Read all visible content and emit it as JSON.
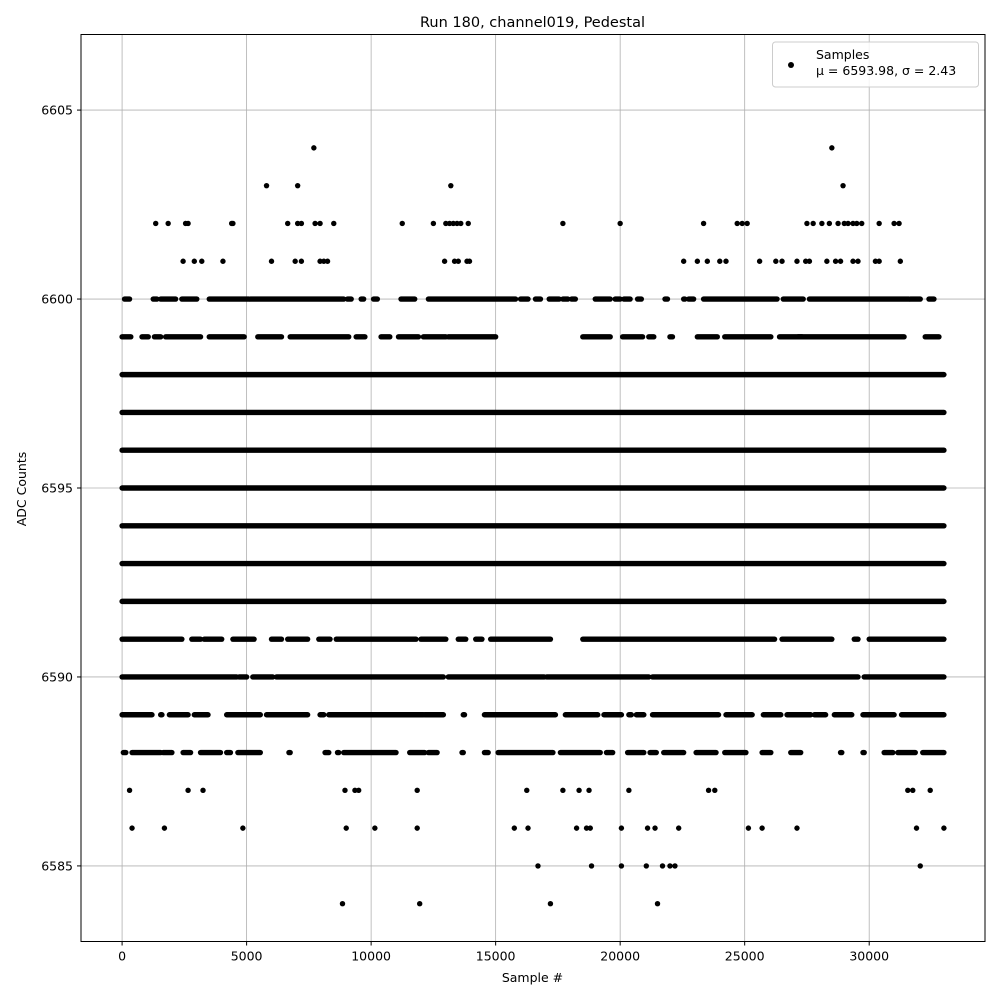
{
  "chart_data": {
    "type": "scatter",
    "title": "Run 180, channel019, Pedestal",
    "xlabel": "Sample #",
    "ylabel": "ADC Counts",
    "xlim": [
      -1650,
      34650
    ],
    "ylim": [
      6583,
      6607
    ],
    "xticks": [
      0,
      5000,
      10000,
      15000,
      20000,
      25000,
      30000
    ],
    "yticks": [
      6585,
      6590,
      6595,
      6600,
      6605
    ],
    "grid": true,
    "legend_position": "top-right",
    "marker_color": "#000000",
    "series": [
      {
        "name": "Samples",
        "stats_label": "μ = 6593.98, σ = 2.43",
        "n_samples": 33000,
        "dense_levels": [
          {
            "y": 6592,
            "from": 0,
            "to": 33000
          },
          {
            "y": 6593,
            "from": 0,
            "to": 33000
          },
          {
            "y": 6594,
            "from": 0,
            "to": 33000
          },
          {
            "y": 6595,
            "from": 0,
            "to": 33000
          },
          {
            "y": 6596,
            "from": 0,
            "to": 33000
          },
          {
            "y": 6597,
            "from": 0,
            "to": 33000
          },
          {
            "y": 6598,
            "from": 0,
            "to": 33000
          }
        ],
        "sparse_points": [
          [
            8850,
            6584
          ],
          [
            11950,
            6584
          ],
          [
            17200,
            6584
          ],
          [
            21500,
            6584
          ],
          [
            16700,
            6585
          ],
          [
            18850,
            6585
          ],
          [
            20050,
            6585
          ],
          [
            21050,
            6585
          ],
          [
            21700,
            6585
          ],
          [
            22000,
            6585
          ],
          [
            22200,
            6585
          ],
          [
            32050,
            6585
          ],
          [
            400,
            6586
          ],
          [
            1700,
            6586
          ],
          [
            4850,
            6586
          ],
          [
            9000,
            6586
          ],
          [
            10150,
            6586
          ],
          [
            11850,
            6586
          ],
          [
            15750,
            6586
          ],
          [
            16300,
            6586
          ],
          [
            18250,
            6586
          ],
          [
            18650,
            6586
          ],
          [
            18800,
            6586
          ],
          [
            20050,
            6586
          ],
          [
            21100,
            6586
          ],
          [
            21400,
            6586
          ],
          [
            22350,
            6586
          ],
          [
            25150,
            6586
          ],
          [
            25700,
            6586
          ],
          [
            27100,
            6586
          ],
          [
            31900,
            6586
          ],
          [
            33000,
            6586
          ],
          [
            300,
            6587
          ],
          [
            2650,
            6587
          ],
          [
            3250,
            6587
          ],
          [
            8950,
            6587
          ],
          [
            9350,
            6587
          ],
          [
            9500,
            6587
          ],
          [
            11850,
            6587
          ],
          [
            16250,
            6587
          ],
          [
            17700,
            6587
          ],
          [
            18350,
            6587
          ],
          [
            18750,
            6587
          ],
          [
            20350,
            6587
          ],
          [
            23550,
            6587
          ],
          [
            23800,
            6587
          ],
          [
            31550,
            6587
          ],
          [
            31750,
            6587
          ],
          [
            32450,
            6587
          ],
          [
            7700,
            6604
          ],
          [
            28500,
            6604
          ],
          [
            5800,
            6603
          ],
          [
            7050,
            6603
          ],
          [
            13200,
            6603
          ],
          [
            28950,
            6603
          ],
          [
            1350,
            6602
          ],
          [
            1850,
            6602
          ],
          [
            2550,
            6602
          ],
          [
            2650,
            6602
          ],
          [
            4400,
            6602
          ],
          [
            4450,
            6602
          ],
          [
            6650,
            6602
          ],
          [
            7050,
            6602
          ],
          [
            7200,
            6602
          ],
          [
            7750,
            6602
          ],
          [
            7950,
            6602
          ],
          [
            8500,
            6602
          ],
          [
            11250,
            6602
          ],
          [
            12500,
            6602
          ],
          [
            13000,
            6602
          ],
          [
            13150,
            6602
          ],
          [
            13300,
            6602
          ],
          [
            13450,
            6602
          ],
          [
            13600,
            6602
          ],
          [
            13900,
            6602
          ],
          [
            17700,
            6602
          ],
          [
            20000,
            6602
          ],
          [
            23350,
            6602
          ],
          [
            24700,
            6602
          ],
          [
            24900,
            6602
          ],
          [
            25100,
            6602
          ],
          [
            27500,
            6602
          ],
          [
            27750,
            6602
          ],
          [
            28100,
            6602
          ],
          [
            28400,
            6602
          ],
          [
            28750,
            6602
          ],
          [
            29000,
            6602
          ],
          [
            29150,
            6602
          ],
          [
            29350,
            6602
          ],
          [
            29500,
            6602
          ],
          [
            29700,
            6602
          ],
          [
            30400,
            6602
          ],
          [
            31000,
            6602
          ],
          [
            31200,
            6602
          ],
          [
            2450,
            6601
          ],
          [
            2900,
            6601
          ],
          [
            3200,
            6601
          ],
          [
            4050,
            6601
          ],
          [
            6000,
            6601
          ],
          [
            6950,
            6601
          ],
          [
            7200,
            6601
          ],
          [
            7950,
            6601
          ],
          [
            8100,
            6601
          ],
          [
            8250,
            6601
          ],
          [
            12950,
            6601
          ],
          [
            13350,
            6601
          ],
          [
            13500,
            6601
          ],
          [
            13850,
            6601
          ],
          [
            13950,
            6601
          ],
          [
            22550,
            6601
          ],
          [
            23100,
            6601
          ],
          [
            23500,
            6601
          ],
          [
            24000,
            6601
          ],
          [
            24250,
            6601
          ],
          [
            25600,
            6601
          ],
          [
            26250,
            6601
          ],
          [
            26500,
            6601
          ],
          [
            27100,
            6601
          ],
          [
            27450,
            6601
          ],
          [
            27600,
            6601
          ],
          [
            28300,
            6601
          ],
          [
            28650,
            6601
          ],
          [
            28850,
            6601
          ],
          [
            29350,
            6601
          ],
          [
            29550,
            6601
          ],
          [
            30250,
            6601
          ],
          [
            30400,
            6601
          ],
          [
            31250,
            6601
          ]
        ],
        "level_runs": [
          {
            "y": 6600,
            "runs": [
              [
                100,
                300
              ],
              [
                1250,
                1400
              ],
              [
                1550,
                2150
              ],
              [
                2400,
                3000
              ],
              [
                3500,
                5100
              ],
              [
                5150,
                8900
              ],
              [
                9050,
                9200
              ],
              [
                9600,
                9700
              ],
              [
                10100,
                10250
              ],
              [
                11200,
                11750
              ],
              [
                12300,
                15800
              ],
              [
                16000,
                16300
              ],
              [
                16600,
                16800
              ],
              [
                17150,
                17550
              ],
              [
                17700,
                17900
              ],
              [
                18050,
                18200
              ],
              [
                19000,
                19600
              ],
              [
                19800,
                20000
              ],
              [
                20150,
                20400
              ],
              [
                20700,
                20850
              ],
              [
                21800,
                21900
              ],
              [
                22550,
                22600
              ],
              [
                22750,
                22950
              ],
              [
                23350,
                26300
              ],
              [
                26550,
                27350
              ],
              [
                27600,
                31600
              ],
              [
                31650,
                32050
              ],
              [
                32400,
                32600
              ]
            ]
          },
          {
            "y": 6599,
            "runs": [
              [
                0,
                350
              ],
              [
                800,
                1050
              ],
              [
                1300,
                1550
              ],
              [
                1750,
                3150
              ],
              [
                3500,
                4900
              ],
              [
                5450,
                6400
              ],
              [
                6750,
                9100
              ],
              [
                9400,
                9750
              ],
              [
                10400,
                10750
              ],
              [
                11100,
                11900
              ],
              [
                12100,
                13000
              ],
              [
                13100,
                15000
              ],
              [
                18500,
                19600
              ],
              [
                20100,
                20900
              ],
              [
                21150,
                21350
              ],
              [
                22000,
                22100
              ],
              [
                23100,
                23900
              ],
              [
                24200,
                26050
              ],
              [
                26400,
                27300
              ],
              [
                27150,
                31400
              ],
              [
                32250,
                32800
              ]
            ]
          },
          {
            "y": 6591,
            "runs": [
              [
                0,
                2400
              ],
              [
                2800,
                3150
              ],
              [
                3300,
                4000
              ],
              [
                4450,
                5300
              ],
              [
                6000,
                6400
              ],
              [
                6650,
                7450
              ],
              [
                7900,
                8350
              ],
              [
                8600,
                11800
              ],
              [
                12000,
                13000
              ],
              [
                13500,
                13800
              ],
              [
                14200,
                14450
              ],
              [
                14800,
                17200
              ],
              [
                18500,
                26200
              ],
              [
                26500,
                28500
              ],
              [
                29400,
                29550
              ],
              [
                30000,
                33000
              ]
            ]
          },
          {
            "y": 6590,
            "runs": [
              [
                0,
                4600
              ],
              [
                4700,
                5000
              ],
              [
                5250,
                6050
              ],
              [
                6200,
                12900
              ],
              [
                13100,
                16950
              ],
              [
                17050,
                21150
              ],
              [
                21300,
                29550
              ],
              [
                29800,
                33000
              ]
            ]
          },
          {
            "y": 6589,
            "runs": [
              [
                0,
                1200
              ],
              [
                1550,
                1600
              ],
              [
                1900,
                2650
              ],
              [
                2900,
                3450
              ],
              [
                4200,
                5550
              ],
              [
                5800,
                7450
              ],
              [
                7950,
                8100
              ],
              [
                8300,
                12100
              ],
              [
                12150,
                12900
              ],
              [
                13700,
                13750
              ],
              [
                14550,
                17400
              ],
              [
                17800,
                19100
              ],
              [
                19350,
                20050
              ],
              [
                20350,
                20450
              ],
              [
                20650,
                20950
              ],
              [
                21300,
                23950
              ],
              [
                24250,
                25300
              ],
              [
                25750,
                26450
              ],
              [
                26700,
                27650
              ],
              [
                27800,
                28250
              ],
              [
                28600,
                29300
              ],
              [
                29750,
                31000
              ],
              [
                31300,
                33000
              ]
            ]
          },
          {
            "y": 6588,
            "runs": [
              [
                50,
                150
              ],
              [
                400,
                1550
              ],
              [
                1650,
                2000
              ],
              [
                2450,
                2750
              ],
              [
                3150,
                3950
              ],
              [
                4200,
                4350
              ],
              [
                4650,
                5550
              ],
              [
                6700,
                6750
              ],
              [
                8150,
                8300
              ],
              [
                8650,
                8700
              ],
              [
                8900,
                11000
              ],
              [
                11550,
                12150
              ],
              [
                12300,
                12650
              ],
              [
                13650,
                13700
              ],
              [
                14550,
                14700
              ],
              [
                15100,
                17300
              ],
              [
                17600,
                19200
              ],
              [
                19450,
                19700
              ],
              [
                20300,
                20950
              ],
              [
                21200,
                21450
              ],
              [
                21750,
                22550
              ],
              [
                23050,
                23850
              ],
              [
                24200,
                25050
              ],
              [
                25700,
                26050
              ],
              [
                26850,
                27250
              ],
              [
                28850,
                28900
              ],
              [
                29750,
                29800
              ],
              [
                30600,
                30950
              ],
              [
                31150,
                31850
              ],
              [
                32150,
                33000
              ]
            ]
          }
        ]
      }
    ]
  }
}
